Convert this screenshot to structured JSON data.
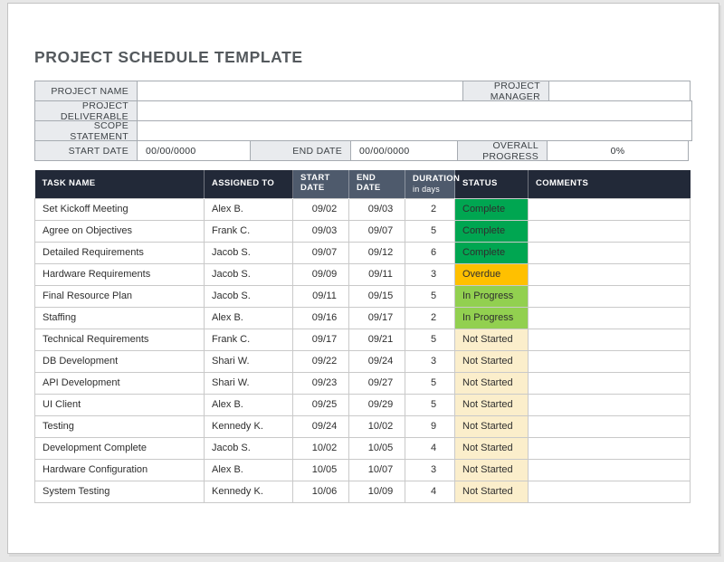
{
  "colors": {
    "header_dark": "#222938",
    "header_slate": "#4e5a6c",
    "label_bg": "#e9ebee",
    "date_cell_bg": "#f2f2f2",
    "duration_cell_bg": "#e9edf4",
    "status": {
      "Complete": "#00a651",
      "Overdue": "#ffc000",
      "In Progress": "#92d050",
      "Not Started": "#fbeecb"
    }
  },
  "title": "PROJECT SCHEDULE TEMPLATE",
  "form": {
    "project_name": {
      "label": "PROJECT NAME",
      "value": ""
    },
    "project_manager": {
      "label": "PROJECT MANAGER",
      "value": ""
    },
    "project_deliverable": {
      "label": "PROJECT DELIVERABLE",
      "value": ""
    },
    "scope_statement": {
      "label": "SCOPE STATEMENT",
      "value": ""
    },
    "start_date": {
      "label": "START DATE",
      "value": "00/00/0000"
    },
    "end_date": {
      "label": "END DATE",
      "value": "00/00/0000"
    },
    "overall_progress": {
      "label": "OVERALL PROGRESS",
      "value": "0%"
    }
  },
  "table": {
    "columns": [
      {
        "label": "TASK NAME",
        "sub": "",
        "variant": "dark"
      },
      {
        "label": "ASSIGNED TO",
        "sub": "",
        "variant": "dark"
      },
      {
        "label": "START\nDATE",
        "sub": "",
        "variant": "slate"
      },
      {
        "label": "END\nDATE",
        "sub": "",
        "variant": "slate"
      },
      {
        "label": "DURATION",
        "sub": "in days",
        "variant": "slate"
      },
      {
        "label": "STATUS",
        "sub": "",
        "variant": "dark"
      },
      {
        "label": "COMMENTS",
        "sub": "",
        "variant": "dark"
      }
    ],
    "rows": [
      {
        "task": "Set Kickoff Meeting",
        "assigned": "Alex B.",
        "start": "09/02",
        "end": "09/03",
        "duration": "2",
        "status": "Complete",
        "comments": ""
      },
      {
        "task": "Agree on Objectives",
        "assigned": "Frank C.",
        "start": "09/03",
        "end": "09/07",
        "duration": "5",
        "status": "Complete",
        "comments": ""
      },
      {
        "task": "Detailed Requirements",
        "assigned": "Jacob S.",
        "start": "09/07",
        "end": "09/12",
        "duration": "6",
        "status": "Complete",
        "comments": ""
      },
      {
        "task": "Hardware Requirements",
        "assigned": "Jacob S.",
        "start": "09/09",
        "end": "09/11",
        "duration": "3",
        "status": "Overdue",
        "comments": ""
      },
      {
        "task": "Final Resource Plan",
        "assigned": "Jacob S.",
        "start": "09/11",
        "end": "09/15",
        "duration": "5",
        "status": "In Progress",
        "comments": ""
      },
      {
        "task": "Staffing",
        "assigned": "Alex B.",
        "start": "09/16",
        "end": "09/17",
        "duration": "2",
        "status": "In Progress",
        "comments": ""
      },
      {
        "task": "Technical Requirements",
        "assigned": "Frank C.",
        "start": "09/17",
        "end": "09/21",
        "duration": "5",
        "status": "Not Started",
        "comments": ""
      },
      {
        "task": "DB Development",
        "assigned": "Shari W.",
        "start": "09/22",
        "end": "09/24",
        "duration": "3",
        "status": "Not Started",
        "comments": ""
      },
      {
        "task": "API Development",
        "assigned": "Shari W.",
        "start": "09/23",
        "end": "09/27",
        "duration": "5",
        "status": "Not Started",
        "comments": ""
      },
      {
        "task": "UI Client",
        "assigned": "Alex B.",
        "start": "09/25",
        "end": "09/29",
        "duration": "5",
        "status": "Not Started",
        "comments": ""
      },
      {
        "task": "Testing",
        "assigned": "Kennedy K.",
        "start": "09/24",
        "end": "10/02",
        "duration": "9",
        "status": "Not Started",
        "comments": ""
      },
      {
        "task": "Development Complete",
        "assigned": "Jacob S.",
        "start": "10/02",
        "end": "10/05",
        "duration": "4",
        "status": "Not Started",
        "comments": ""
      },
      {
        "task": "Hardware Configuration",
        "assigned": "Alex B.",
        "start": "10/05",
        "end": "10/07",
        "duration": "3",
        "status": "Not Started",
        "comments": ""
      },
      {
        "task": "System Testing",
        "assigned": "Kennedy K.",
        "start": "10/06",
        "end": "10/09",
        "duration": "4",
        "status": "Not Started",
        "comments": ""
      }
    ]
  }
}
